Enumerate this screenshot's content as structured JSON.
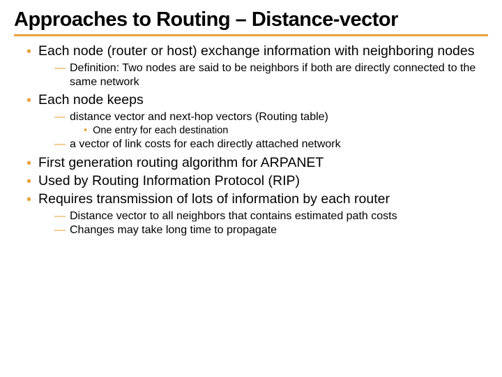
{
  "title": "Approaches to Routing – Distance-vector",
  "colors": {
    "accent": "#e8a33d",
    "text": "#000000",
    "background": "#ffffff"
  },
  "typography": {
    "title_fontsize": 29,
    "title_weight": 900,
    "lvl1_fontsize": 19.5,
    "lvl2_fontsize": 16,
    "lvl3_fontsize": 14.5
  },
  "items": {
    "b1": "Each node (router or host) exchange information with neighboring nodes",
    "b1_1": "Definition: Two nodes are said to be neighbors if both are directly connected to the same network",
    "b2": "Each node keeps",
    "b2_1": "distance vector and next-hop vectors (Routing table)",
    "b2_1_1": "One entry for each destination",
    "b2_2": "a vector of link costs for each directly attached network",
    "b3": "First generation routing algorithm for ARPANET",
    "b4": "Used by Routing Information Protocol (RIP)",
    "b5": "Requires transmission of lots of information by each router",
    "b5_1": "Distance vector to all neighbors that contains estimated path costs",
    "b5_2": "Changes may take long time to propagate"
  },
  "bullets": {
    "lvl1": "•",
    "lvl2": "—",
    "lvl3": "•"
  }
}
